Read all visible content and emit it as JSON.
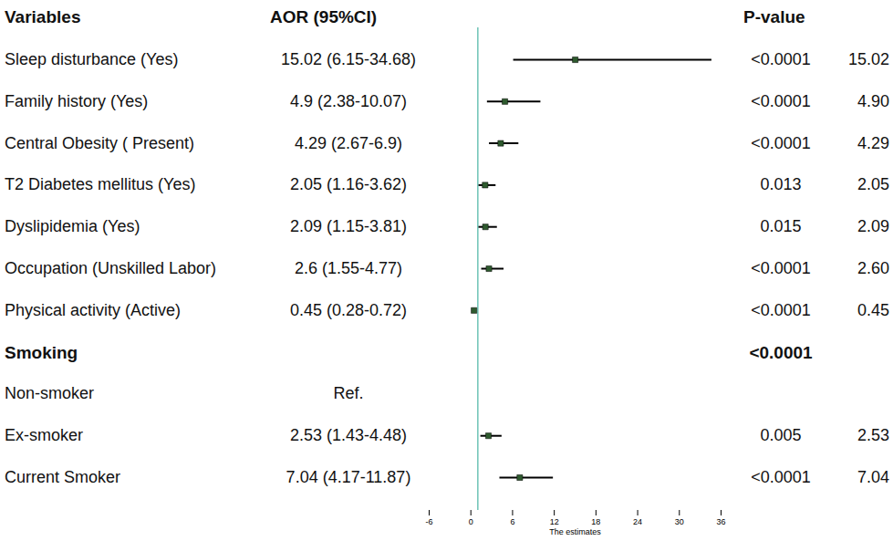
{
  "chart_data": {
    "type": "forest",
    "headers": [
      "Variables",
      "AOR (95%CI)",
      "P-value"
    ],
    "x_label": "The estimates",
    "xlim": [
      -6,
      36
    ],
    "xticks": [
      -6,
      0,
      6,
      12,
      18,
      24,
      30,
      36
    ],
    "reference_line": 1,
    "color": "#2e5a2e",
    "rows": [
      {
        "label": "Sleep disturbance (Yes)",
        "aor_text": "15.02 (6.15-34.68)",
        "estimate": 15.02,
        "ci_low": 6.15,
        "ci_high": 34.68,
        "p_value": "<0.0001",
        "estimate_label": "15.02"
      },
      {
        "label": "Family history (Yes)",
        "aor_text": "4.9 (2.38-10.07)",
        "estimate": 4.9,
        "ci_low": 2.38,
        "ci_high": 10.07,
        "p_value": "<0.0001",
        "estimate_label": "4.90"
      },
      {
        "label": "Central Obesity ( Present)",
        "aor_text": "4.29 (2.67-6.9)",
        "estimate": 4.29,
        "ci_low": 2.67,
        "ci_high": 6.9,
        "p_value": "<0.0001",
        "estimate_label": "4.29"
      },
      {
        "label": "T2 Diabetes mellitus (Yes)",
        "aor_text": "2.05 (1.16-3.62)",
        "estimate": 2.05,
        "ci_low": 1.16,
        "ci_high": 3.62,
        "p_value": "0.013",
        "estimate_label": "2.05"
      },
      {
        "label": "Dyslipidemia (Yes)",
        "aor_text": "2.09 (1.15-3.81)",
        "estimate": 2.09,
        "ci_low": 1.15,
        "ci_high": 3.81,
        "p_value": "0.015",
        "estimate_label": "2.09"
      },
      {
        "label": "Occupation (Unskilled Labor)",
        "aor_text": "2.6 (1.55-4.77)",
        "estimate": 2.6,
        "ci_low": 1.55,
        "ci_high": 4.77,
        "p_value": "<0.0001",
        "estimate_label": "2.60"
      },
      {
        "label": "Physical activity (Active)",
        "aor_text": "0.45 (0.28-0.72)",
        "estimate": 0.45,
        "ci_low": 0.28,
        "ci_high": 0.72,
        "p_value": "<0.0001",
        "estimate_label": "0.45"
      },
      {
        "label": "Smoking",
        "p_value": "<0.0001"
      },
      {
        "label": "Non-smoker",
        "aor_text": "Ref."
      },
      {
        "label": "Ex-smoker",
        "aor_text": "2.53 (1.43-4.48)",
        "estimate": 2.53,
        "ci_low": 1.43,
        "ci_high": 4.48,
        "p_value": "0.005",
        "estimate_label": "2.53"
      },
      {
        "label": "Current Smoker",
        "aor_text": "7.04 (4.17-11.87)",
        "estimate": 7.04,
        "ci_low": 4.17,
        "ci_high": 11.87,
        "p_value": "<0.0001",
        "estimate_label": "7.04"
      }
    ]
  }
}
